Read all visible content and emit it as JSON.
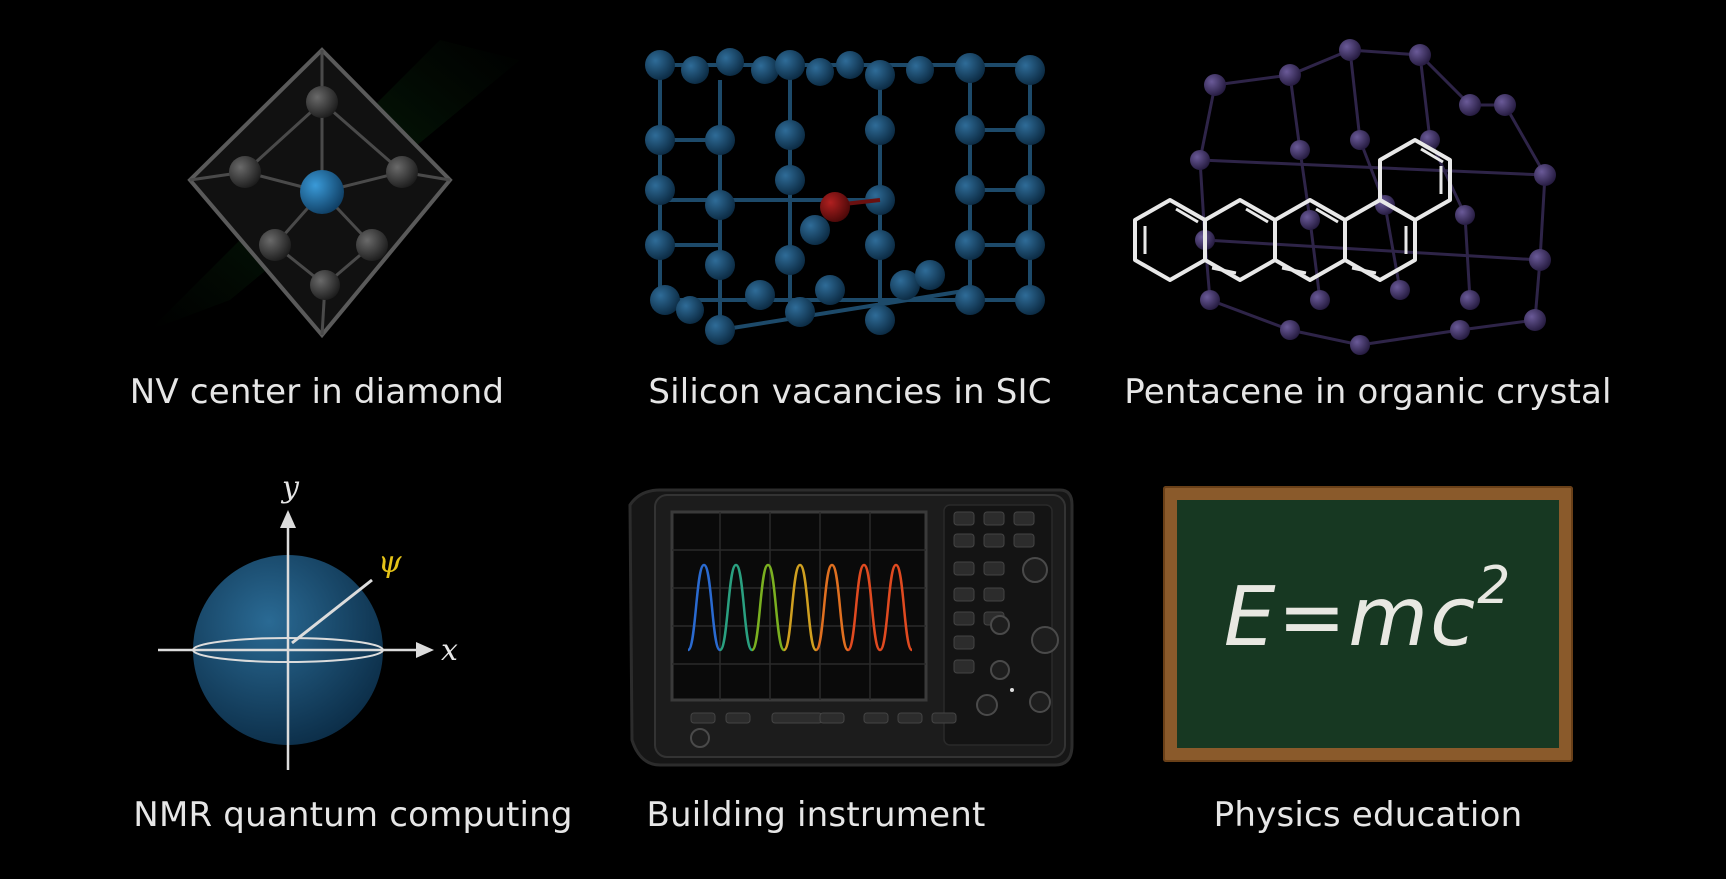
{
  "tiles": [
    {
      "caption": "NV center in diamond",
      "icon": "nv-diamond-lattice"
    },
    {
      "caption": "Silicon vacancies in SIC",
      "icon": "sic-lattice"
    },
    {
      "caption": "Pentacene in organic crystal",
      "icon": "pentacene-molecule"
    },
    {
      "caption": "NMR quantum computing",
      "icon": "bloch-sphere"
    },
    {
      "caption": "Building instrument",
      "icon": "oscilloscope"
    },
    {
      "caption": "Physics education",
      "icon": "chalkboard"
    }
  ],
  "bloch": {
    "x_label": "x",
    "y_label": "y",
    "state_label": "ψ"
  },
  "chalkboard": {
    "equation_base": "E=mc",
    "equation_exp": "2"
  },
  "colors": {
    "atom_blue": "#15466a",
    "vacancy_red": "#7a1010",
    "carbon_gray": "#3a3a3a",
    "nv_blue": "#1e6aa0",
    "purple_atom": "#4a3a6e",
    "board_green": "#173822",
    "frame_brown": "#8a5a2b",
    "state_yellow": "#e5c318"
  }
}
